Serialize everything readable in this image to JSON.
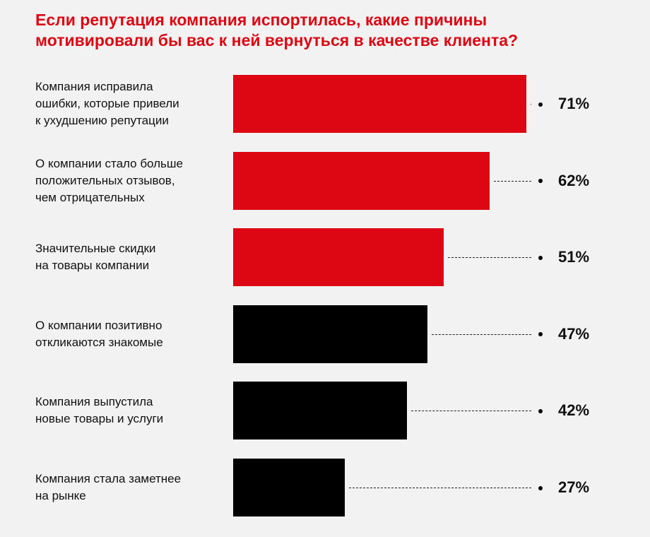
{
  "chart_data": {
    "type": "bar",
    "title": "Если репутация компания испортилась, какие причины\nмотивировали бы вас к ней вернуться в качестве клиента?",
    "categories": [
      "Компания исправила\nошибки, которые привели\nк ухудшению репутации",
      "О компании стало больше\nположительных отзывов,\nчем отрицательных",
      "Значительные скидки\nна товары компании",
      "О компании позитивно\nоткликаются знакомые",
      "Компания выпустила\nновые товары и услуги",
      "Компания стала заметнее\nна рынке"
    ],
    "values": [
      71,
      62,
      51,
      47,
      42,
      27
    ],
    "value_labels": [
      "71%",
      "62%",
      "51%",
      "47%",
      "42%",
      "27%"
    ],
    "colors": [
      "#dd0713",
      "#dd0713",
      "#dd0713",
      "#000000",
      "#000000",
      "#000000"
    ]
  }
}
